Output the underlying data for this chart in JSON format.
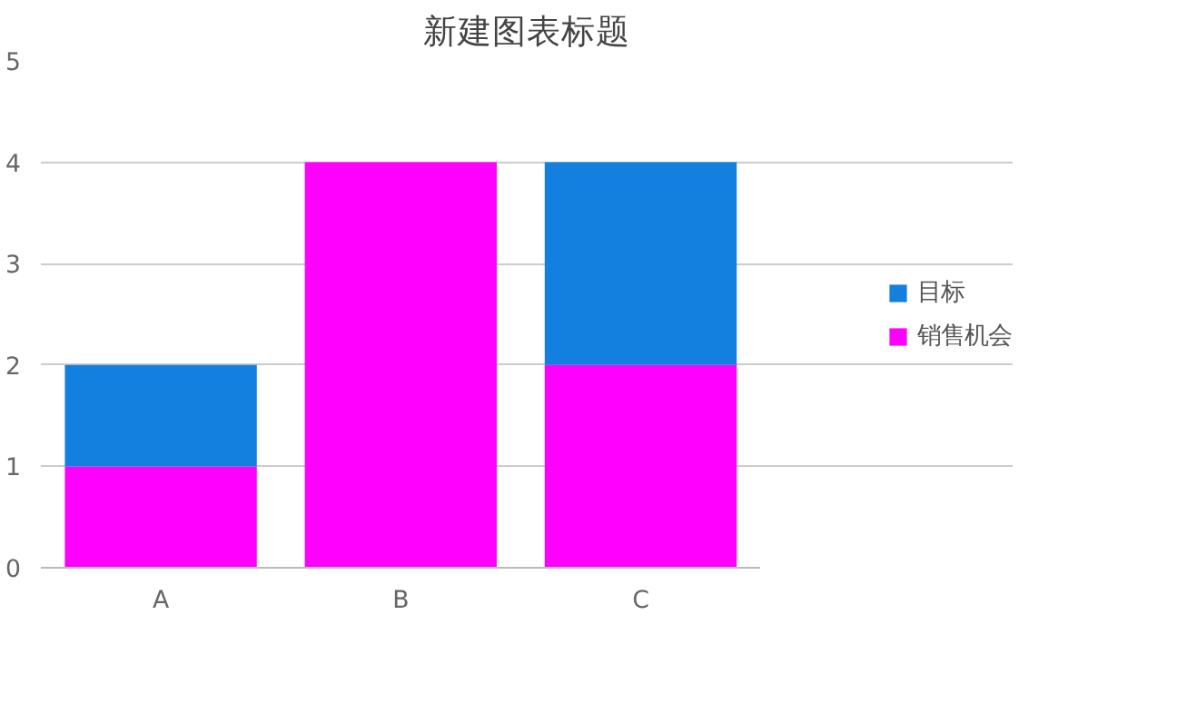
{
  "chart_data": {
    "type": "bar",
    "title": "新建图表标题",
    "categories": [
      "A",
      "B",
      "C"
    ],
    "stacked": true,
    "series": [
      {
        "name": "销售机会",
        "color": "#ff00ff",
        "values": [
          1,
          4,
          2
        ]
      },
      {
        "name": "目标",
        "color": "#1380e0",
        "values": [
          1,
          0,
          2
        ]
      }
    ],
    "ylim": [
      0,
      5
    ],
    "yticks": [
      0,
      1,
      2,
      3,
      4,
      5
    ],
    "grid": "y",
    "legend": "right"
  }
}
